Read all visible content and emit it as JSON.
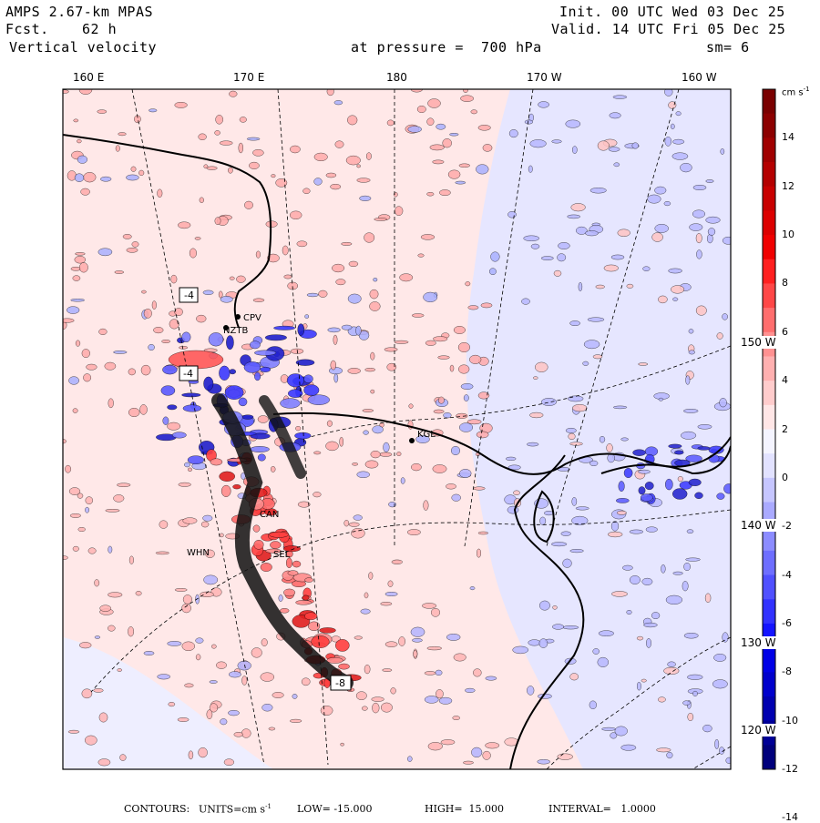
{
  "header": {
    "model": "AMPS 2.67-km MPAS",
    "fcst_label": "Fcst.",
    "fcst_value": "62 h",
    "field": "Vertical velocity",
    "init": "Init. 00 UTC Wed 03 Dec 25",
    "valid": "Valid. 14 UTC Fri 05 Dec 25",
    "pressure": "at pressure =  700 hPa",
    "smooth": "sm= 6"
  },
  "lon_labels": [
    "160 E",
    "170 E",
    "180",
    "170 W",
    "160 W"
  ],
  "lat_labels": [
    "150 W",
    "140 W",
    "130 W",
    "120 W"
  ],
  "colorbar": {
    "units": "cm s",
    "units_exp": "-1",
    "ticks": [
      "14",
      "12",
      "10",
      "8",
      "6",
      "4",
      "2",
      "0",
      "-2",
      "-4",
      "-6",
      "-8",
      "-10",
      "-12",
      "-14"
    ],
    "colors": [
      "#7a0000",
      "#8c0000",
      "#a00000",
      "#b40000",
      "#c80000",
      "#dc0000",
      "#f00000",
      "#ff2020",
      "#ff4747",
      "#ff6e6e",
      "#ff9191",
      "#ffb0b0",
      "#ffcccc",
      "#ffe6e6",
      "#f4f4ff",
      "#e2e2ff",
      "#c6c6ff",
      "#aaaaff",
      "#8c8cff",
      "#6e6eff",
      "#5050ff",
      "#3232ff",
      "#1414ff",
      "#0000e6",
      "#0000cc",
      "#0000b0",
      "#000096",
      "#00007c"
    ]
  },
  "stations": [
    "CPV",
    "NZTB",
    "CAN",
    "WHN",
    "SEL",
    "KGL"
  ],
  "boxed_labels": [
    "-4",
    "-4",
    "-8"
  ],
  "footer": {
    "contours": "CONTOURS:",
    "units_label": "UNITS=cm s",
    "units_exp": "-1",
    "low": "LOW= -15.000",
    "high": "HIGH=  15.000",
    "interval": "INTERVAL=   1.0000"
  }
}
